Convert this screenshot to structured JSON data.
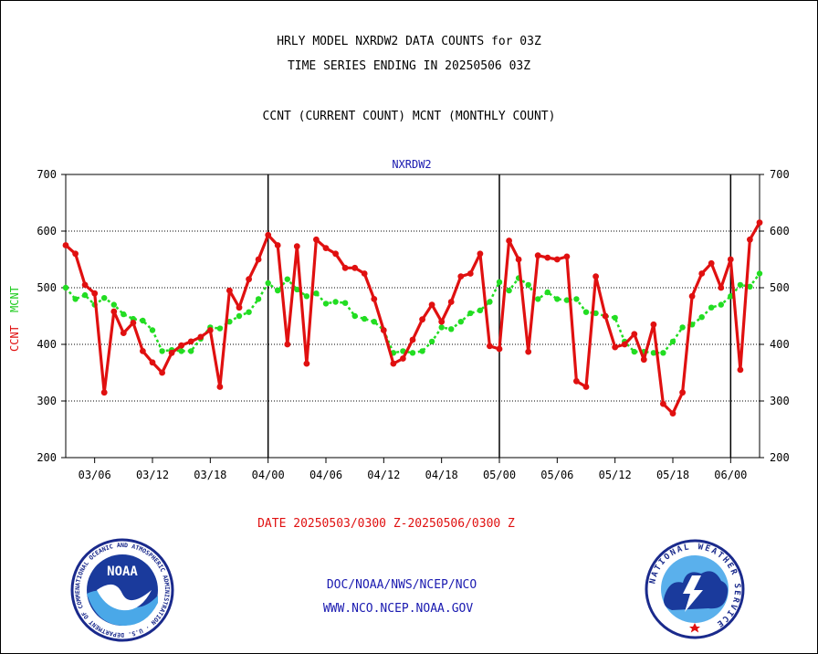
{
  "header": {
    "title1": "HRLY MODEL NXRDW2 DATA COUNTS for 03Z",
    "title2": "TIME SERIES ENDING IN 20250506 03Z",
    "title3": "CCNT (CURRENT COUNT) MCNT (MONTHLY COUNT)"
  },
  "chart_data": {
    "type": "line",
    "title": "NXRDW2",
    "ylabel_ccnt": "CCNT",
    "ylabel_mcnt": "MCNT",
    "ylim": [
      200,
      700
    ],
    "yticks": [
      "200",
      "300",
      "400",
      "500",
      "600",
      "700"
    ],
    "xticks": [
      "03/06",
      "03/12",
      "03/18",
      "04/00",
      "04/06",
      "04/12",
      "04/18",
      "05/00",
      "05/06",
      "05/12",
      "05/18",
      "06/00"
    ],
    "grid": "horizontal",
    "day_boundaries": [
      "04/00",
      "05/00",
      "06/00"
    ],
    "x": [
      "03/03",
      "03/04",
      "03/05",
      "03/06",
      "03/07",
      "03/08",
      "03/09",
      "03/10",
      "03/11",
      "03/12",
      "03/13",
      "03/14",
      "03/15",
      "03/16",
      "03/17",
      "03/18",
      "03/19",
      "03/20",
      "03/21",
      "03/22",
      "03/23",
      "04/00",
      "04/01",
      "04/02",
      "04/03",
      "04/04",
      "04/05",
      "04/06",
      "04/07",
      "04/08",
      "04/09",
      "04/10",
      "04/11",
      "04/12",
      "04/13",
      "04/14",
      "04/15",
      "04/16",
      "04/17",
      "04/18",
      "04/19",
      "04/20",
      "04/21",
      "04/22",
      "04/23",
      "05/00",
      "05/01",
      "05/02",
      "05/03",
      "05/04",
      "05/05",
      "05/06",
      "05/07",
      "05/08",
      "05/09",
      "05/10",
      "05/11",
      "05/12",
      "05/13",
      "05/14",
      "05/15",
      "05/16",
      "05/17",
      "05/18",
      "05/19",
      "05/20",
      "05/21",
      "05/22",
      "05/23",
      "06/00",
      "06/01",
      "06/02",
      "06/03"
    ],
    "series": [
      {
        "name": "CCNT",
        "color": "#e01010",
        "values": [
          575,
          560,
          505,
          490,
          315,
          458,
          420,
          438,
          388,
          368,
          350,
          385,
          398,
          405,
          413,
          425,
          325,
          495,
          465,
          515,
          550,
          593,
          575,
          400,
          573,
          366,
          585,
          570,
          560,
          535,
          535,
          525,
          480,
          425,
          366,
          375,
          408,
          444,
          470,
          440,
          475,
          520,
          525,
          560,
          397,
          392,
          583,
          550,
          387,
          557,
          553,
          550,
          555,
          335,
          325,
          520,
          450,
          395,
          400,
          418,
          373,
          435,
          295,
          278,
          315,
          485,
          525,
          543,
          500,
          550,
          355,
          585,
          615
        ]
      },
      {
        "name": "MCNT",
        "color": "#22dd22",
        "values": [
          500,
          480,
          487,
          470,
          482,
          470,
          453,
          445,
          442,
          425,
          388,
          390,
          388,
          388,
          410,
          430,
          428,
          440,
          450,
          457,
          480,
          508,
          495,
          515,
          497,
          485,
          490,
          472,
          475,
          473,
          450,
          445,
          440,
          425,
          385,
          388,
          385,
          388,
          405,
          430,
          427,
          440,
          455,
          460,
          475,
          510,
          495,
          517,
          505,
          480,
          492,
          480,
          478,
          480,
          457,
          455,
          450,
          447,
          405,
          387,
          387,
          385,
          385,
          405,
          430,
          435,
          448,
          465,
          470,
          485,
          505,
          502,
          525
        ]
      }
    ]
  },
  "footer": {
    "date_range": "DATE 20250503/0300 Z-20250506/0300 Z",
    "line1": "DOC/NOAA/NWS/NCEP/NCO",
    "line2": "WWW.NCO.NCEP.NOAA.GOV",
    "noaa_logo_text": "NOAA",
    "noaa_ring_text": "NATIONAL OCEANIC AND ATMOSPHERIC ADMINISTRATION · U.S. DEPARTMENT OF COMMERCE",
    "nws_ring_text": "NATIONAL WEATHER SERVICE"
  }
}
